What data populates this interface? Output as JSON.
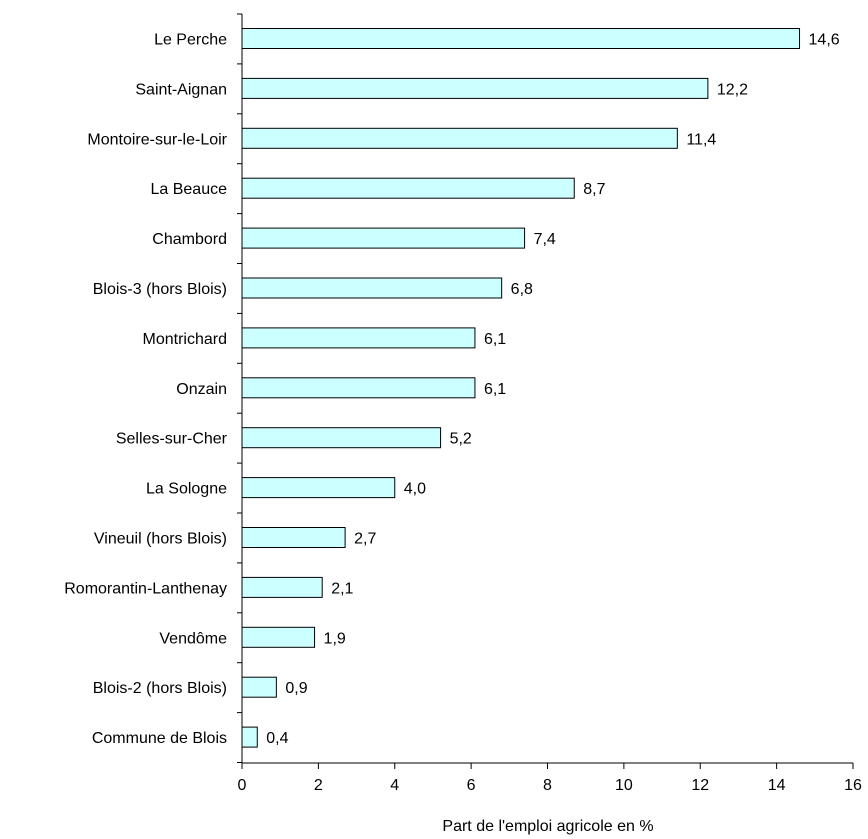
{
  "chart_data": {
    "type": "bar",
    "orientation": "horizontal",
    "categories": [
      "Le Perche",
      "Saint-Aignan",
      "Montoire-sur-le-Loir",
      "La Beauce",
      "Chambord",
      "Blois-3 (hors Blois)",
      "Montrichard",
      "Onzain",
      "Selles-sur-Cher",
      "La Sologne",
      "Vineuil (hors Blois)",
      "Romorantin-Lanthenay",
      "Vendôme",
      "Blois-2 (hors Blois)",
      "Commune de Blois"
    ],
    "values": [
      14.6,
      12.2,
      11.4,
      8.7,
      7.4,
      6.8,
      6.1,
      6.1,
      5.2,
      4.0,
      2.7,
      2.1,
      1.9,
      0.9,
      0.4
    ],
    "value_labels": [
      "14,6",
      "12,2",
      "11,4",
      "8,7",
      "7,4",
      "6,8",
      "6,1",
      "6,1",
      "5,2",
      "4,0",
      "2,7",
      "2,1",
      "1,9",
      "0,9",
      "0,4"
    ],
    "xlabel": "Part de l'emploi agricole en %",
    "ylabel": "",
    "title": "",
    "xlim": [
      0,
      16
    ],
    "xticks": [
      0,
      2,
      4,
      6,
      8,
      10,
      12,
      14,
      16
    ],
    "grid": false,
    "legend": "none",
    "bar_color": "#CCFFFF",
    "bar_edge_color": "#000000"
  }
}
